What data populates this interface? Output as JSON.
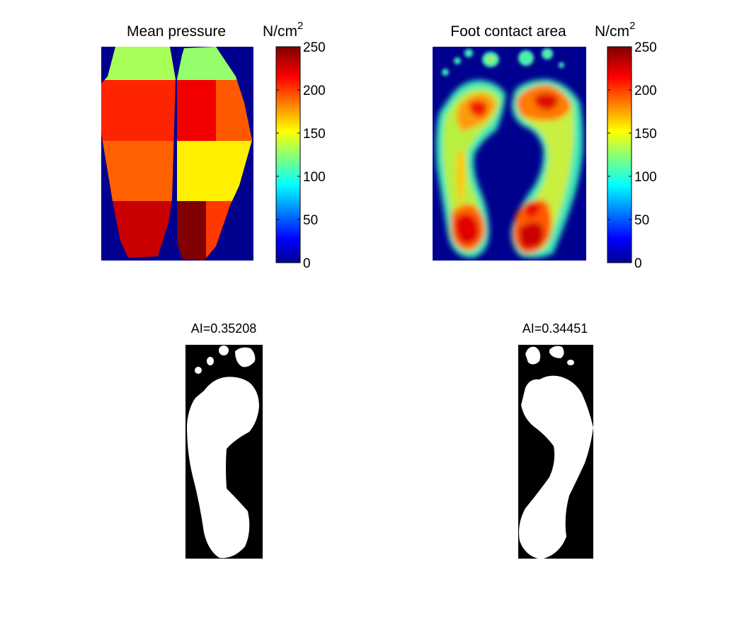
{
  "chart_data": [
    {
      "type": "heatmap",
      "title": "Mean pressure",
      "colorbar": {
        "label": "N/cm",
        "label_superscript": "2",
        "range": [
          0,
          250
        ],
        "ticks": [
          "0",
          "50",
          "100",
          "150",
          "200",
          "250"
        ],
        "colormap": "jet"
      },
      "background_color": "#00008f",
      "regions": [
        {
          "foot": "left",
          "zone": "toes",
          "value": 135
        },
        {
          "foot": "left",
          "zone": "forefoot-medial",
          "value": 210
        },
        {
          "foot": "left",
          "zone": "forefoot-lateral",
          "value": 210
        },
        {
          "foot": "left",
          "zone": "midfoot",
          "value": 195
        },
        {
          "foot": "left",
          "zone": "heel-medial",
          "value": 232
        },
        {
          "foot": "left",
          "zone": "heel-lateral",
          "value": 232
        },
        {
          "foot": "right",
          "zone": "toes",
          "value": 130
        },
        {
          "foot": "right",
          "zone": "forefoot-medial",
          "value": 222
        },
        {
          "foot": "right",
          "zone": "forefoot-lateral",
          "value": 197
        },
        {
          "foot": "right",
          "zone": "midfoot",
          "value": 160
        },
        {
          "foot": "right",
          "zone": "heel-medial",
          "value": 250
        },
        {
          "foot": "right",
          "zone": "heel-lateral",
          "value": 205
        }
      ]
    },
    {
      "type": "heatmap",
      "title": "Foot contact area",
      "colorbar": {
        "label": "N/cm",
        "label_superscript": "2",
        "range": [
          0,
          250
        ],
        "ticks": [
          "0",
          "50",
          "100",
          "150",
          "200",
          "250"
        ],
        "colormap": "jet"
      },
      "background_color": "#00008f"
    },
    {
      "type": "heatmap",
      "title": "AI=0.35208",
      "foot": "left",
      "colormap": "binary",
      "background_color": "#000000",
      "foreground_color": "#ffffff"
    },
    {
      "type": "heatmap",
      "title": "AI=0.34451",
      "foot": "right",
      "colormap": "binary",
      "background_color": "#000000",
      "foreground_color": "#ffffff"
    }
  ]
}
